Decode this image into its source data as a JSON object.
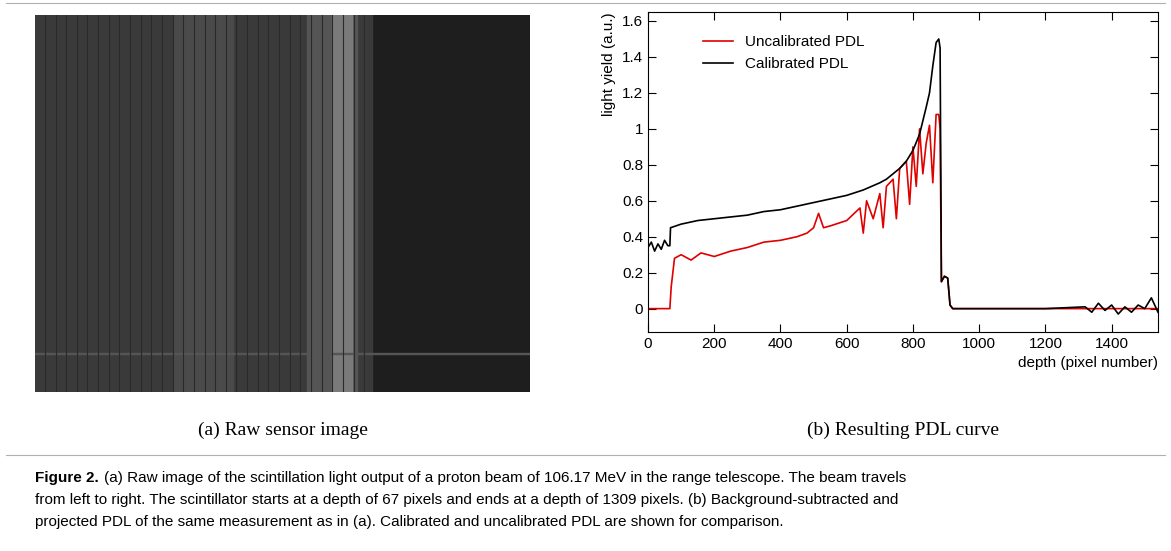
{
  "panels": {
    "a": {
      "caption": "(a) Raw sensor image"
    },
    "b": {
      "caption": "(b) Resulting PDL curve"
    }
  },
  "chart_data": {
    "type": "line",
    "x_label": "depth (pixel number)",
    "y_label": "light yield (a.u.)",
    "xlim": [
      0,
      1540
    ],
    "xticks": [
      0,
      200,
      400,
      600,
      800,
      1000,
      1200,
      1400
    ],
    "ylim": [
      -0.13,
      1.65
    ],
    "yticks": [
      0,
      0.2,
      0.4,
      0.6,
      0.8,
      1,
      1.2,
      1.4,
      1.6
    ],
    "grid": false,
    "legend": "upper left",
    "series": [
      {
        "name": "Uncalibrated PDL",
        "color": "#e00000",
        "x": [
          0,
          66,
          70,
          80,
          100,
          130,
          160,
          200,
          250,
          300,
          350,
          400,
          450,
          480,
          500,
          515,
          530,
          550,
          600,
          640,
          650,
          660,
          680,
          700,
          710,
          720,
          740,
          750,
          760,
          780,
          790,
          800,
          810,
          820,
          830,
          840,
          850,
          860,
          870,
          878,
          882,
          886,
          895,
          905,
          912,
          920,
          1540
        ],
        "values": [
          0,
          0,
          0.12,
          0.28,
          0.3,
          0.27,
          0.31,
          0.29,
          0.32,
          0.34,
          0.37,
          0.38,
          0.4,
          0.42,
          0.45,
          0.53,
          0.45,
          0.46,
          0.49,
          0.56,
          0.42,
          0.6,
          0.5,
          0.64,
          0.45,
          0.68,
          0.72,
          0.5,
          0.78,
          0.82,
          0.58,
          0.9,
          0.68,
          1.0,
          0.75,
          0.92,
          1.02,
          0.7,
          1.08,
          1.08,
          1.0,
          0.15,
          0.18,
          0.17,
          0.02,
          0.0,
          0.0
        ]
      },
      {
        "name": "Calibrated PDL",
        "color": "#000000",
        "x": [
          0,
          10,
          20,
          30,
          40,
          50,
          60,
          66,
          68,
          100,
          150,
          200,
          250,
          300,
          350,
          400,
          450,
          500,
          550,
          600,
          650,
          700,
          720,
          740,
          760,
          780,
          800,
          820,
          840,
          850,
          860,
          870,
          878,
          882,
          886,
          895,
          905,
          912,
          920,
          1000,
          1200,
          1320,
          1340,
          1360,
          1380,
          1400,
          1420,
          1440,
          1460,
          1480,
          1500,
          1520,
          1540
        ],
        "values": [
          0.34,
          0.37,
          0.32,
          0.36,
          0.33,
          0.38,
          0.35,
          0.35,
          0.45,
          0.47,
          0.49,
          0.5,
          0.51,
          0.52,
          0.54,
          0.55,
          0.57,
          0.59,
          0.61,
          0.63,
          0.66,
          0.7,
          0.72,
          0.75,
          0.78,
          0.82,
          0.88,
          0.97,
          1.12,
          1.2,
          1.35,
          1.48,
          1.5,
          1.45,
          0.15,
          0.18,
          0.17,
          0.02,
          0.0,
          0.0,
          0.0,
          0.01,
          -0.02,
          0.03,
          -0.01,
          0.02,
          -0.03,
          0.01,
          -0.02,
          0.02,
          0.0,
          0.06,
          -0.02
        ]
      }
    ]
  },
  "caption": {
    "label": "Figure 2.",
    "lines": [
      "(a) Raw image of the scintillation light output of a proton beam of 106.17 MeV in the range telescope. The beam travels",
      "from left to right. The scintillator starts at a depth of 67 pixels and ends at a depth of 1309 pixels. (b) Background-subtracted and",
      "projected PDL of the same measurement as in (a). Calibrated and uncalibrated PDL are shown for comparison."
    ]
  }
}
